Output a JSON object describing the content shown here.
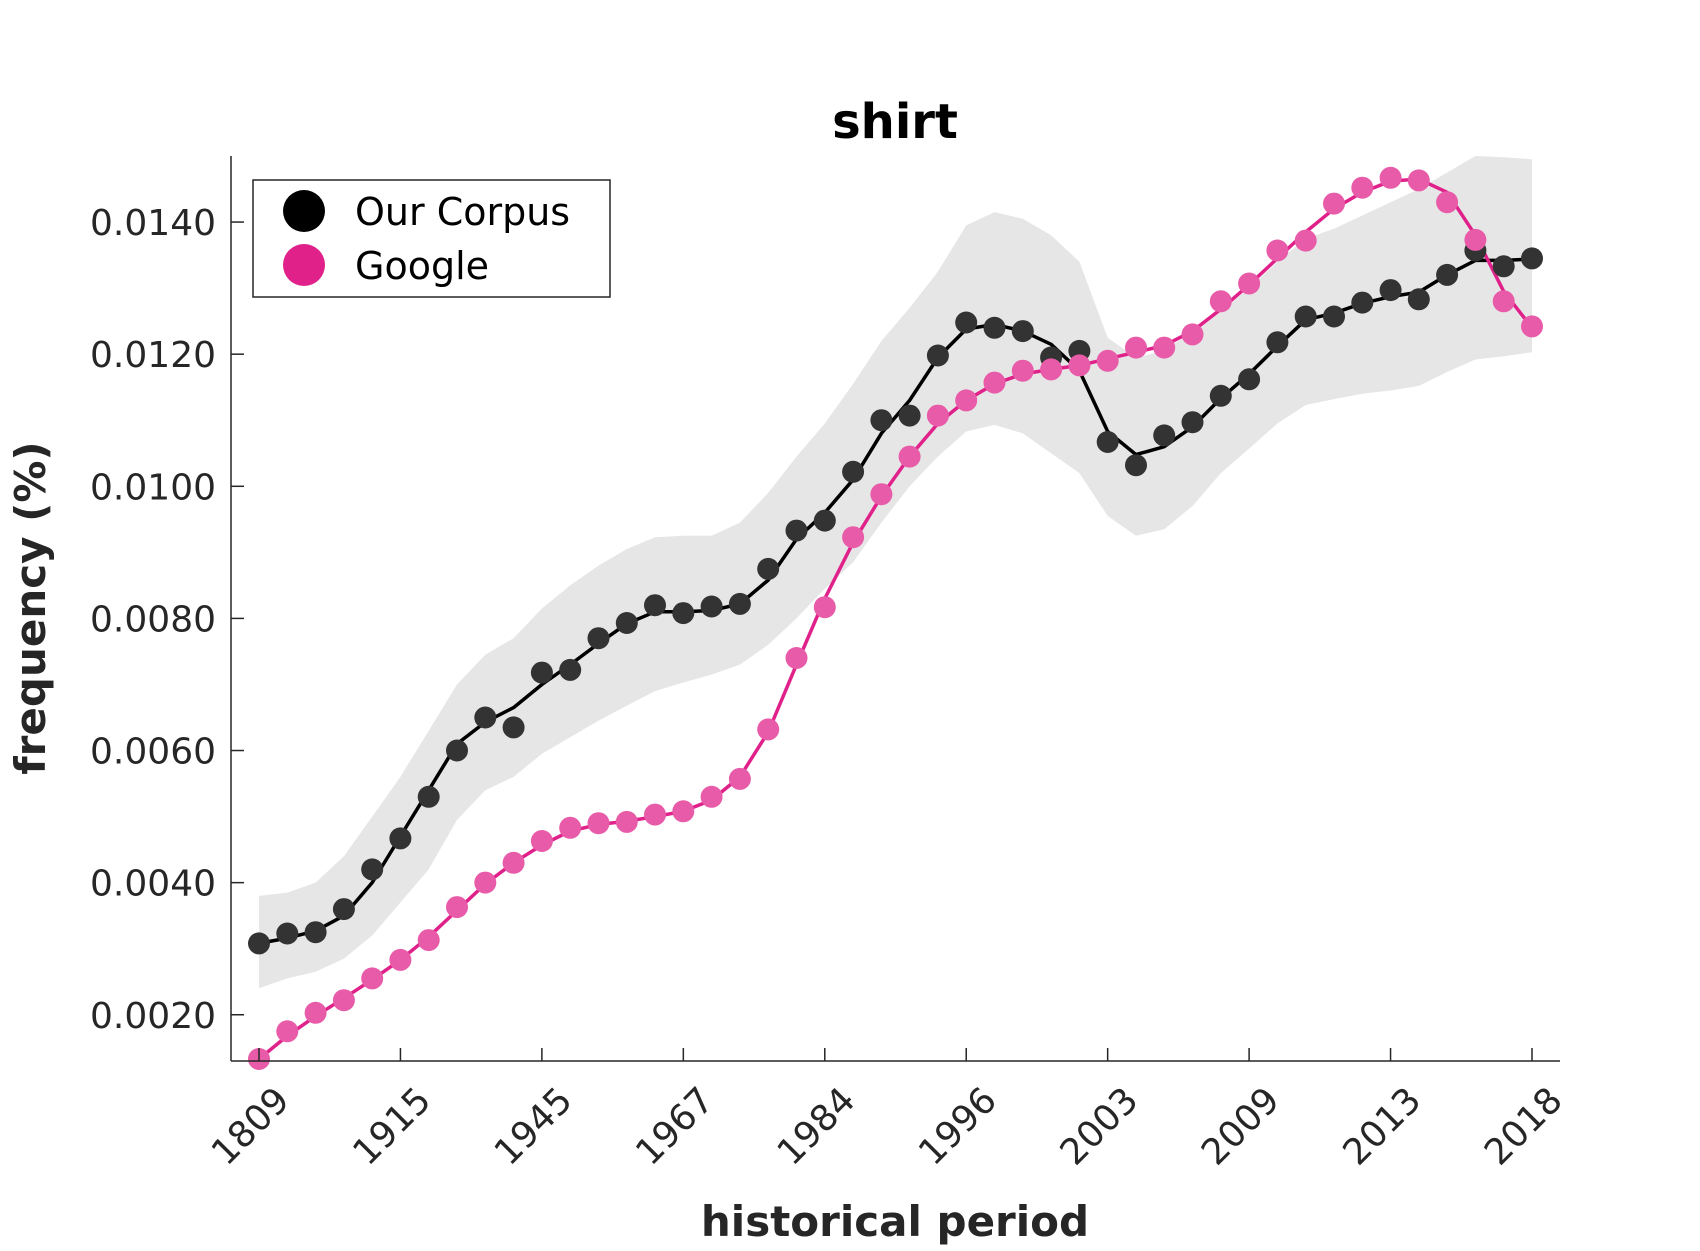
{
  "chart_data": {
    "type": "line",
    "title": "shirt",
    "xlabel": "historical period",
    "ylabel": "frequency (%)",
    "x_tick_labels": [
      "1809",
      "1915",
      "1945",
      "1967",
      "1984",
      "1996",
      "2003",
      "2009",
      "2013",
      "2018"
    ],
    "y_ticks": [
      0.002,
      0.004,
      0.006,
      0.008,
      0.01,
      0.012,
      0.014
    ],
    "y_tick_labels": [
      "0.0020",
      "0.0040",
      "0.0060",
      "0.0080",
      "0.0100",
      "0.0120",
      "0.0140"
    ],
    "ylim": [
      0.0013,
      0.015
    ],
    "grid": false,
    "legend_position": "top-left",
    "series": [
      {
        "name": "Our Corpus",
        "color": "#000000",
        "marker_color": "#333333",
        "points": [
          0.00308,
          0.00323,
          0.00325,
          0.0036,
          0.0042,
          0.00467,
          0.0053,
          0.006,
          0.0065,
          0.00635,
          0.00718,
          0.00722,
          0.0077,
          0.00793,
          0.0082,
          0.00808,
          0.00818,
          0.00822,
          0.00875,
          0.00933,
          0.00948,
          0.01022,
          0.011,
          0.01107,
          0.01198,
          0.01248,
          0.0124,
          0.01235,
          0.01195,
          0.01205,
          0.01067,
          0.01032,
          0.01077,
          0.01097,
          0.01137,
          0.01162,
          0.01218,
          0.01257,
          0.01257,
          0.01278,
          0.01297,
          0.01283,
          0.0132,
          0.01357,
          0.01333,
          0.01345
        ],
        "smooth": [
          0.00308,
          0.00316,
          0.00327,
          0.0035,
          0.004,
          0.0047,
          0.0054,
          0.0061,
          0.00643,
          0.00665,
          0.007,
          0.0073,
          0.00762,
          0.00792,
          0.0081,
          0.0081,
          0.00812,
          0.00822,
          0.00858,
          0.0092,
          0.0096,
          0.0101,
          0.0108,
          0.0113,
          0.01195,
          0.01238,
          0.01245,
          0.01235,
          0.01215,
          0.01175,
          0.01083,
          0.01048,
          0.0106,
          0.0109,
          0.01133,
          0.0117,
          0.01212,
          0.01252,
          0.01262,
          0.01277,
          0.01287,
          0.01294,
          0.0132,
          0.01342,
          0.01342,
          0.01344
        ],
        "band_upper": [
          0.0038,
          0.00385,
          0.004,
          0.0044,
          0.005,
          0.0056,
          0.0063,
          0.007,
          0.00745,
          0.0077,
          0.00815,
          0.0085,
          0.0088,
          0.00905,
          0.00923,
          0.00925,
          0.00925,
          0.00945,
          0.0099,
          0.01045,
          0.01095,
          0.01155,
          0.0122,
          0.0127,
          0.01325,
          0.01395,
          0.01415,
          0.01405,
          0.0138,
          0.0134,
          0.01225,
          0.01195,
          0.01205,
          0.01235,
          0.01265,
          0.013,
          0.0134,
          0.01375,
          0.0139,
          0.0141,
          0.0143,
          0.0145,
          0.01475,
          0.015,
          0.01498,
          0.01495
        ],
        "band_lower": [
          0.0024,
          0.00255,
          0.00265,
          0.00285,
          0.0032,
          0.0037,
          0.0042,
          0.00495,
          0.0054,
          0.0056,
          0.00595,
          0.0062,
          0.00645,
          0.00668,
          0.0069,
          0.00703,
          0.00715,
          0.0073,
          0.0076,
          0.008,
          0.00845,
          0.00885,
          0.00945,
          0.01,
          0.01045,
          0.01083,
          0.01093,
          0.0108,
          0.0105,
          0.0102,
          0.00955,
          0.00925,
          0.00935,
          0.0097,
          0.0102,
          0.01057,
          0.01095,
          0.01123,
          0.01132,
          0.0114,
          0.01145,
          0.01152,
          0.01173,
          0.01192,
          0.01197,
          0.01203
        ]
      },
      {
        "name": "Google",
        "color": "#e0218a",
        "marker_color": "#e85ba8",
        "points": [
          0.00133,
          0.00175,
          0.00203,
          0.00222,
          0.00255,
          0.00283,
          0.00313,
          0.00363,
          0.004,
          0.0043,
          0.00463,
          0.00483,
          0.0049,
          0.00492,
          0.00503,
          0.00508,
          0.0053,
          0.00557,
          0.00632,
          0.0074,
          0.00817,
          0.00923,
          0.00988,
          0.01045,
          0.01107,
          0.0113,
          0.01157,
          0.01175,
          0.01177,
          0.01183,
          0.0119,
          0.0121,
          0.0121,
          0.0123,
          0.0128,
          0.01307,
          0.01357,
          0.01372,
          0.01428,
          0.01452,
          0.01467,
          0.01463,
          0.0143,
          0.01373,
          0.0128,
          0.01242
        ],
        "smooth": [
          0.00133,
          0.00168,
          0.00198,
          0.00225,
          0.00253,
          0.00283,
          0.00318,
          0.00358,
          0.00398,
          0.0043,
          0.00457,
          0.00478,
          0.00488,
          0.00493,
          0.005,
          0.00508,
          0.00525,
          0.0056,
          0.00628,
          0.0073,
          0.0083,
          0.00915,
          0.00985,
          0.01045,
          0.01095,
          0.0113,
          0.01155,
          0.0117,
          0.01177,
          0.01183,
          0.01193,
          0.01203,
          0.01213,
          0.01235,
          0.01268,
          0.01305,
          0.01345,
          0.01385,
          0.0142,
          0.01445,
          0.01462,
          0.01465,
          0.01445,
          0.0138,
          0.01295,
          0.0124
        ]
      }
    ]
  }
}
